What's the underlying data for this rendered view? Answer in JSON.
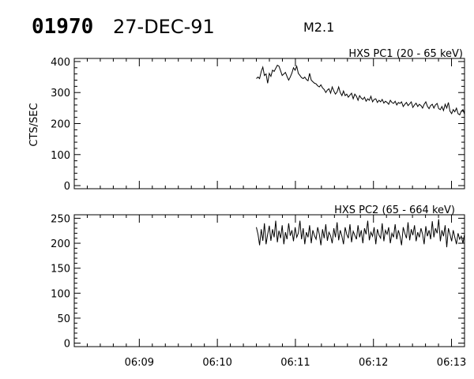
{
  "header": {
    "event_id": "01970",
    "date": "27-DEC-91",
    "flare_class": "M2.1"
  },
  "chart_data": [
    {
      "type": "line",
      "title": "HXS PC1 (20 - 65 keV)",
      "ylabel": "CTS/SEC",
      "xlabel": "",
      "ylim": [
        -10,
        410
      ],
      "yticks": [
        0,
        100,
        200,
        300,
        400
      ],
      "xlim": [
        "06:08:10",
        "06:13:10"
      ],
      "xticks": [
        "06:09",
        "06:10",
        "06:11",
        "06:12",
        "06:13"
      ],
      "x_start": "06:10:30",
      "x_end": "06:13:10",
      "grid": false,
      "series": [
        {
          "values": [
            345,
            350,
            345,
            368,
            382,
            355,
            360,
            330,
            362,
            352,
            372,
            368,
            378,
            388,
            385,
            370,
            355,
            360,
            365,
            352,
            340,
            350,
            363,
            380,
            372,
            385,
            362,
            355,
            348,
            345,
            350,
            342,
            338,
            362,
            340,
            335,
            330,
            328,
            322,
            318,
            325,
            315,
            310,
            300,
            308,
            312,
            298,
            318,
            305,
            295,
            302,
            318,
            300,
            290,
            305,
            290,
            295,
            285,
            292,
            298,
            280,
            295,
            288,
            275,
            290,
            282,
            278,
            285,
            272,
            280,
            275,
            288,
            270,
            278,
            280,
            268,
            275,
            270,
            278,
            266,
            272,
            268,
            262,
            275,
            268,
            265,
            272,
            260,
            268,
            265,
            270,
            255,
            262,
            268,
            258,
            264,
            270,
            252,
            260,
            266,
            255,
            262,
            258,
            250,
            262,
            270,
            256,
            248,
            258,
            262,
            250,
            260,
            265,
            248,
            245,
            255,
            242,
            262,
            250,
            268,
            240,
            232,
            245,
            238,
            250,
            232,
            228,
            240,
            245,
            230
          ]
        }
      ]
    },
    {
      "type": "line",
      "title": "HXS PC2 (65 - 664 keV)",
      "ylabel": "",
      "xlabel": "",
      "ylim": [
        -7,
        257
      ],
      "yticks": [
        0,
        50,
        100,
        150,
        200,
        250
      ],
      "xlim": [
        "06:08:10",
        "06:13:10"
      ],
      "xticks": [
        "06:09",
        "06:10",
        "06:11",
        "06:12",
        "06:13"
      ],
      "x_start": "06:10:30",
      "x_end": "06:13:10",
      "grid": false,
      "series": [
        {
          "values": [
            232,
            218,
            196,
            228,
            205,
            240,
            198,
            218,
            235,
            205,
            228,
            212,
            245,
            202,
            225,
            210,
            236,
            198,
            222,
            208,
            240,
            215,
            226,
            204,
            232,
            212,
            220,
            245,
            208,
            230,
            198,
            222,
            212,
            236,
            200,
            226,
            215,
            208,
            232,
            218,
            196,
            228,
            210,
            238,
            205,
            222,
            215,
            200,
            230,
            212,
            242,
            206,
            226,
            214,
            198,
            232,
            218,
            210,
            238,
            202,
            224,
            216,
            208,
            236,
            212,
            226,
            200,
            230,
            218,
            245,
            206,
            222,
            214,
            232,
            198,
            228,
            216,
            210,
            240,
            204,
            226,
            218,
            232,
            200,
            220,
            212,
            238,
            208,
            226,
            214,
            196,
            232,
            220,
            210,
            242,
            206,
            228,
            216,
            236,
            204,
            222,
            212,
            230,
            218,
            198,
            234,
            214,
            226,
            208,
            244,
            212,
            230,
            220,
            248,
            204,
            226,
            214,
            236,
            192,
            230,
            218,
            204,
            226,
            212,
            198,
            220,
            208,
            214,
            200,
            218
          ]
        }
      ]
    }
  ]
}
